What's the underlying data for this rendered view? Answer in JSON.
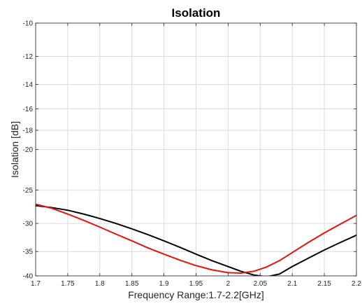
{
  "chart_data": {
    "type": "line",
    "title": "Isolation",
    "xlabel": "Frequency Range:1.7-2.2[GHz]",
    "ylabel": "Isolation [dB]",
    "xlim": [
      1.7,
      2.2
    ],
    "ylim": [
      -40,
      -10
    ],
    "yscale": "log",
    "grid": true,
    "legend": "none",
    "x_ticks": [
      1.7,
      1.75,
      1.8,
      1.85,
      1.9,
      1.95,
      2.0,
      2.05,
      2.1,
      2.15,
      2.2
    ],
    "x_tick_labels": [
      "1.7",
      "1.75",
      "1.8",
      "1.85",
      "1.9",
      "1.95",
      "2",
      "2.05",
      "2.1",
      "2.15",
      "2.2"
    ],
    "y_ticks": [
      -10,
      -12,
      -14,
      -16,
      -18,
      -20,
      -25,
      -30,
      -35,
      -40
    ],
    "y_tick_labels": [
      "-10",
      "-12",
      "-14",
      "-16",
      "-18",
      "-20",
      "-25",
      "-30",
      "-35",
      "-40"
    ],
    "series": [
      {
        "color": "#000000",
        "x": [
          1.7,
          1.725,
          1.75,
          1.775,
          1.8,
          1.825,
          1.85,
          1.875,
          1.9,
          1.925,
          1.95,
          1.975,
          2.0,
          2.02,
          2.04,
          2.06,
          2.08,
          2.1,
          2.125,
          2.15,
          2.175,
          2.2
        ],
        "y": [
          -27.2,
          -27.5,
          -27.9,
          -28.5,
          -29.2,
          -30.0,
          -30.9,
          -31.9,
          -33.0,
          -34.2,
          -35.5,
          -36.8,
          -38.0,
          -39.0,
          -39.8,
          -40.2,
          -39.6,
          -38.0,
          -36.3,
          -34.7,
          -33.3,
          -32.0
        ]
      },
      {
        "color": "#e8110f",
        "x": [
          1.7,
          1.725,
          1.75,
          1.775,
          1.8,
          1.825,
          1.85,
          1.875,
          1.9,
          1.925,
          1.95,
          1.975,
          2.0,
          2.02,
          2.04,
          2.06,
          2.08,
          2.1,
          2.125,
          2.15,
          2.175,
          2.2
        ],
        "y": [
          -27.0,
          -27.6,
          -28.5,
          -29.5,
          -30.6,
          -31.8,
          -33.0,
          -34.3,
          -35.5,
          -36.7,
          -37.8,
          -38.7,
          -39.3,
          -39.4,
          -39.0,
          -38.1,
          -36.8,
          -35.2,
          -33.3,
          -31.6,
          -30.1,
          -28.7
        ]
      }
    ]
  }
}
